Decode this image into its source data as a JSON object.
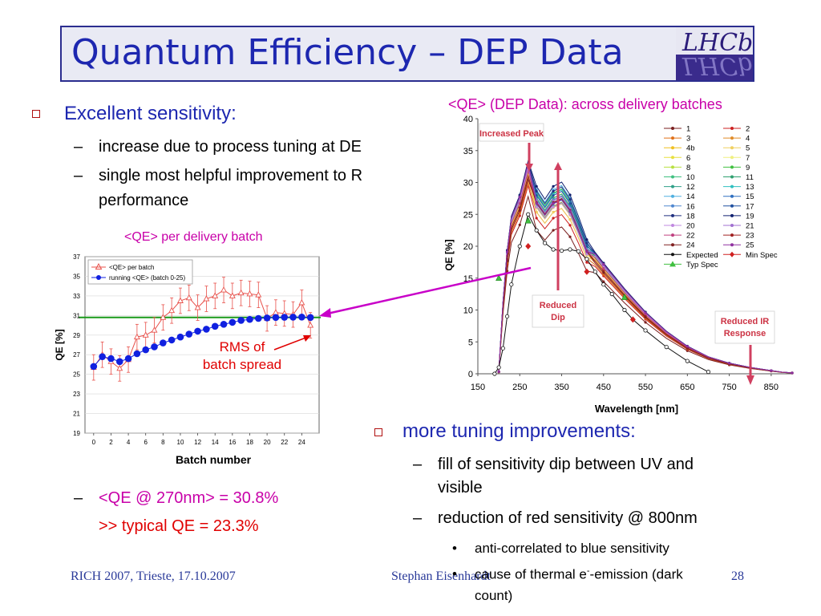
{
  "slide": {
    "title": "Quantum Efficiency – DEP Data",
    "logo_text": "LHCb",
    "left_bullets": {
      "main": "Excellent sensitivity:",
      "sub1": "increase due to process tuning at DE",
      "sub2_line1": "single most helpful improvement to R",
      "sub2_line2": "performance",
      "qe_line": "<QE @ 270nm> = 30.8%",
      "typical_line": ">> typical QE = 23.3%"
    },
    "right_bullets": {
      "main": "more tuning improvements:",
      "sub1_line1": "fill of sensitivity dip between UV and",
      "sub1_line2": "visible",
      "sub2": "reduction of red sensitivity @ 800nm",
      "dot1": "anti-correlated to blue sensitivity",
      "dot2_prefix": "cause of thermal e",
      "dot2_sup": "-",
      "dot2_suffix": "-emission (dark",
      "dot2_line2": "count)"
    },
    "footer_left": "RICH 2007, Trieste, 17.10.2007",
    "footer_mid": "Stephan Eisenhardt",
    "footer_page": "28",
    "dash": "–",
    "dot": "•",
    "colors": {
      "title": "#1d27b0",
      "bullet": "#b01010",
      "accent": "#c800a8",
      "highlight": "#e00000"
    }
  },
  "chart_data": [
    {
      "type": "line",
      "title": "<QE> per delivery batch",
      "xlabel": "Batch number",
      "ylabel": "QE [%]",
      "xlim": [
        -1,
        26
      ],
      "ylim": [
        19,
        37
      ],
      "xticks": [
        "0",
        "2",
        "4",
        "6",
        "8",
        "10",
        "12",
        "14",
        "16",
        "18",
        "20",
        "22",
        "24"
      ],
      "yticks": [
        "19",
        "21",
        "23",
        "25",
        "27",
        "29",
        "31",
        "33",
        "35",
        "37"
      ],
      "reference_line": 30.8,
      "annotation_line1": "RMS of",
      "annotation_line2": "batch spread",
      "legend_position": "top-left",
      "series": [
        {
          "name": "<QE> per batch",
          "color": "#e8504a",
          "marker": "triangle-open",
          "error_bars": true,
          "x": [
            0,
            1,
            2,
            3,
            4,
            5,
            6,
            7,
            8,
            9,
            10,
            11,
            12,
            13,
            14,
            15,
            16,
            17,
            18,
            19,
            20,
            21,
            22,
            23,
            24,
            25
          ],
          "y": [
            25.7,
            27.0,
            26.3,
            25.6,
            26.5,
            28.8,
            29.0,
            29.5,
            30.8,
            31.5,
            32.5,
            32.8,
            31.8,
            32.7,
            33.0,
            33.6,
            33.0,
            33.3,
            33.2,
            33.1,
            30.7,
            31.3,
            31.2,
            31.1,
            32.3,
            30.0
          ]
        },
        {
          "name": "running <QE> (batch 0-25)",
          "color": "#1020e0",
          "marker": "circle-filled",
          "error_bars": false,
          "x": [
            0,
            1,
            2,
            3,
            4,
            5,
            6,
            7,
            8,
            9,
            10,
            11,
            12,
            13,
            14,
            15,
            16,
            17,
            18,
            19,
            20,
            21,
            22,
            23,
            24,
            25
          ],
          "y": [
            25.8,
            26.8,
            26.6,
            26.3,
            26.6,
            27.1,
            27.5,
            27.8,
            28.2,
            28.5,
            28.8,
            29.1,
            29.4,
            29.6,
            29.9,
            30.1,
            30.3,
            30.5,
            30.6,
            30.7,
            30.75,
            30.8,
            30.82,
            30.83,
            30.84,
            30.8
          ]
        }
      ]
    },
    {
      "type": "line",
      "title": "<QE> (DEP Data): across delivery batches",
      "xlabel": "Wavelength [nm]",
      "ylabel": "QE [%]",
      "xlim": [
        150,
        900
      ],
      "ylim": [
        0,
        40
      ],
      "xticks": [
        "150",
        "250",
        "350",
        "450",
        "550",
        "650",
        "750",
        "850"
      ],
      "yticks": [
        "0",
        "5",
        "10",
        "15",
        "20",
        "25",
        "30",
        "35",
        "40"
      ],
      "legend_position": "right",
      "annotations": [
        "Increased Peak",
        "Reduced Dip",
        "Reduced IR Response"
      ],
      "legend_labels": [
        "1",
        "2",
        "3",
        "4",
        "4b",
        "5",
        "6",
        "7",
        "8",
        "9",
        "10",
        "11",
        "12",
        "13",
        "14",
        "15",
        "16",
        "17",
        "18",
        "19",
        "20",
        "21",
        "22",
        "23",
        "24",
        "25",
        "Expected",
        "Min Spec",
        "Typ Spec"
      ],
      "series_colors": [
        "#7a1f1f",
        "#cc2020",
        "#e07018",
        "#e08c28",
        "#f0c020",
        "#f0d060",
        "#e8e040",
        "#f0f080",
        "#b8e040",
        "#40c040",
        "#40c080",
        "#30a070",
        "#30a088",
        "#30c0c0",
        "#50b0e0",
        "#3070c0",
        "#5088d0",
        "#2050a0",
        "#203080",
        "#102070",
        "#c088e0",
        "#a070d0",
        "#c04080",
        "#a02020",
        "#802020",
        "#9030a0"
      ],
      "x": [
        200,
        210,
        220,
        230,
        250,
        270,
        290,
        310,
        330,
        350,
        370,
        390,
        410,
        430,
        450,
        500,
        550,
        600,
        650,
        700,
        750,
        800,
        850,
        875,
        900
      ],
      "shape": [
        0.01,
        0.34,
        0.58,
        0.74,
        0.84,
        1.0,
        0.88,
        0.82,
        0.88,
        0.9,
        0.84,
        0.74,
        0.63,
        0.57,
        0.52,
        0.4,
        0.29,
        0.2,
        0.13,
        0.08,
        0.05,
        0.03,
        0.015,
        0.008,
        0.004
      ],
      "peaks": [
        27.8,
        29.5,
        30.0,
        30.5,
        31.0,
        31.3,
        31.5,
        31.8,
        32.0,
        32.2,
        32.4,
        32.5,
        32.6,
        32.7,
        32.8,
        32.9,
        33.0,
        33.1,
        33.2,
        33.4,
        32.3,
        32.8,
        31.8,
        31.0,
        30.5,
        33.0
      ],
      "expected": {
        "x": [
          190,
          200,
          210,
          220,
          230,
          250,
          270,
          290,
          310,
          330,
          350,
          370,
          390,
          410,
          430,
          450,
          470,
          500,
          520,
          550,
          600,
          650,
          700
        ],
        "y": [
          0,
          1,
          4,
          9,
          14,
          20,
          25,
          22.5,
          20.5,
          19.5,
          19.3,
          19.5,
          19.2,
          18.0,
          16.0,
          14.0,
          12.5,
          10.0,
          8.5,
          6.8,
          4.2,
          2.0,
          0.3
        ]
      },
      "min_spec": {
        "x": [
          270,
          410,
          520
        ],
        "y": [
          20,
          16,
          8.5
        ]
      },
      "typ_spec": {
        "x": [
          200,
          270,
          500
        ],
        "y": [
          15,
          24,
          12
        ]
      }
    }
  ]
}
